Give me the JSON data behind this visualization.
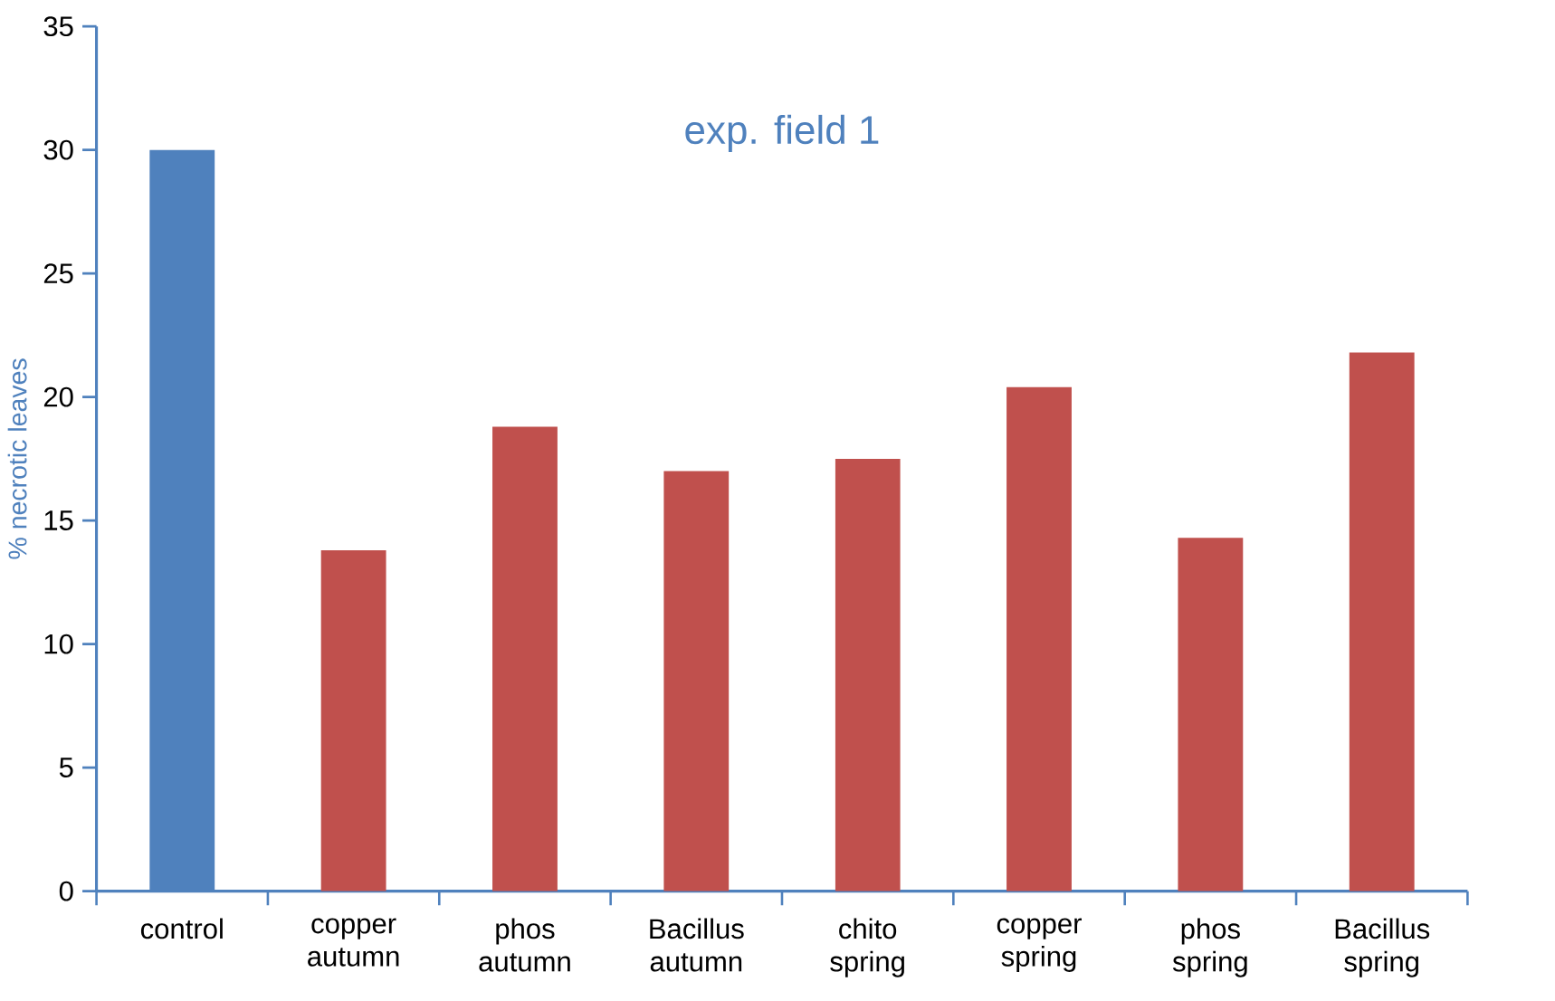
{
  "chart_data": {
    "type": "bar",
    "title": "exp. field 1",
    "ylabel": "% necrotic leaves",
    "categories": [
      "control",
      "copper autumn",
      "phos autumn",
      "Bacillus autumn",
      "chito spring",
      "copper spring",
      "phos spring",
      "Bacillus spring"
    ],
    "values": [
      30,
      13.8,
      18.8,
      17.0,
      17.5,
      20.4,
      14.3,
      21.8
    ],
    "colors": [
      "#4f81bd",
      "#c0504d",
      "#c0504d",
      "#c0504d",
      "#c0504d",
      "#c0504d",
      "#c0504d",
      "#c0504d"
    ],
    "ylim": [
      0,
      35
    ],
    "yticks": [
      0,
      5,
      10,
      15,
      20,
      25,
      30,
      35
    ],
    "grid": false
  }
}
